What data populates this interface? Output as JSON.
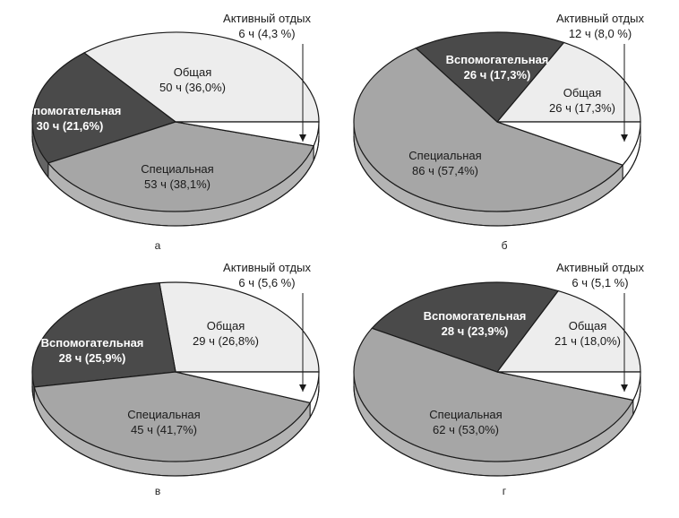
{
  "chart_data": [
    {
      "type": "pie",
      "panel_label": "а",
      "slices": [
        {
          "name": "Общая",
          "hours": 50,
          "value_label": "50 ч (36,0%)",
          "percent": 36.0
        },
        {
          "name": "Активный отдых",
          "hours": 6,
          "value_label": "6 ч (4,3 %)",
          "percent": 4.3
        },
        {
          "name": "Специальная",
          "hours": 53,
          "value_label": "53 ч (38,1%)",
          "percent": 38.1
        },
        {
          "name": "Вспомогательная",
          "hours": 30,
          "value_label": "30 ч (21,6%)",
          "percent": 21.6
        }
      ]
    },
    {
      "type": "pie",
      "panel_label": "б",
      "slices": [
        {
          "name": "Общая",
          "hours": 26,
          "value_label": "26 ч (17,3%)",
          "percent": 17.3
        },
        {
          "name": "Активный отдых",
          "hours": 12,
          "value_label": "12 ч (8,0 %)",
          "percent": 8.0
        },
        {
          "name": "Специальная",
          "hours": 86,
          "value_label": "86 ч (57,4%)",
          "percent": 57.4
        },
        {
          "name": "Вспомогательная",
          "hours": 26,
          "value_label": "26 ч (17,3%)",
          "percent": 17.3
        }
      ]
    },
    {
      "type": "pie",
      "panel_label": "в",
      "slices": [
        {
          "name": "Общая",
          "hours": 29,
          "value_label": "29 ч (26,8%)",
          "percent": 26.8
        },
        {
          "name": "Активный отдых",
          "hours": 6,
          "value_label": "6 ч (5,6 %)",
          "percent": 5.6
        },
        {
          "name": "Специальная",
          "hours": 45,
          "value_label": "45 ч (41,7%)",
          "percent": 41.7
        },
        {
          "name": "Вспомогательная",
          "hours": 28,
          "value_label": "28 ч (25,9%)",
          "percent": 25.9
        }
      ]
    },
    {
      "type": "pie",
      "panel_label": "г",
      "slices": [
        {
          "name": "Общая",
          "hours": 21,
          "value_label": "21 ч (18,0%)",
          "percent": 18.0
        },
        {
          "name": "Активный отдых",
          "hours": 6,
          "value_label": "6 ч (5,1 %)",
          "percent": 5.1
        },
        {
          "name": "Специальная",
          "hours": 62,
          "value_label": "62 ч (53,0%)",
          "percent": 53.0
        },
        {
          "name": "Вспомогательная",
          "hours": 28,
          "value_label": "28 ч (23,9%)",
          "percent": 23.9
        }
      ]
    }
  ],
  "colors": {
    "Общая": "#ededed",
    "Активный отдых": "#ffffff",
    "Специальная": "#a6a6a6",
    "Вспомогательная": "#4a4a4a",
    "outline": "#1a1a1a"
  }
}
